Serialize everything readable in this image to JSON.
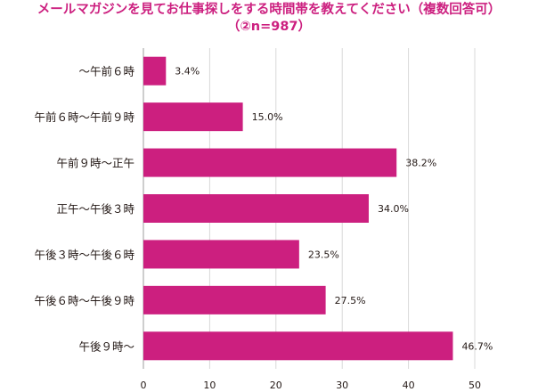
{
  "chart_data": {
    "type": "bar",
    "orientation": "horizontal",
    "title": "メールマガジンを見てお仕事探しをする時間帯を教えてください（複数回答可）",
    "subtitle": "（②n=987）",
    "categories": [
      "〜午前６時",
      "午前６時〜午前９時",
      "午前９時〜正午",
      "正午〜午後３時",
      "午後３時〜午後６時",
      "午後６時〜午後９時",
      "午後９時〜"
    ],
    "values": [
      3.4,
      15.0,
      38.2,
      34.0,
      23.5,
      27.5,
      46.7
    ],
    "value_labels": [
      "3.4%",
      "15.0%",
      "38.2%",
      "34.0%",
      "23.5%",
      "27.5%",
      "46.7%"
    ],
    "xlim": [
      0,
      50
    ],
    "xticks": [
      "0",
      "10",
      "20",
      "30",
      "40",
      "50"
    ],
    "xlabel": "",
    "ylabel": "",
    "grid": "vertical",
    "legend": "none",
    "bar_color": "#cc1f7f",
    "title_color": "#cc1f7f",
    "grid_color": "#d9d9d9"
  }
}
